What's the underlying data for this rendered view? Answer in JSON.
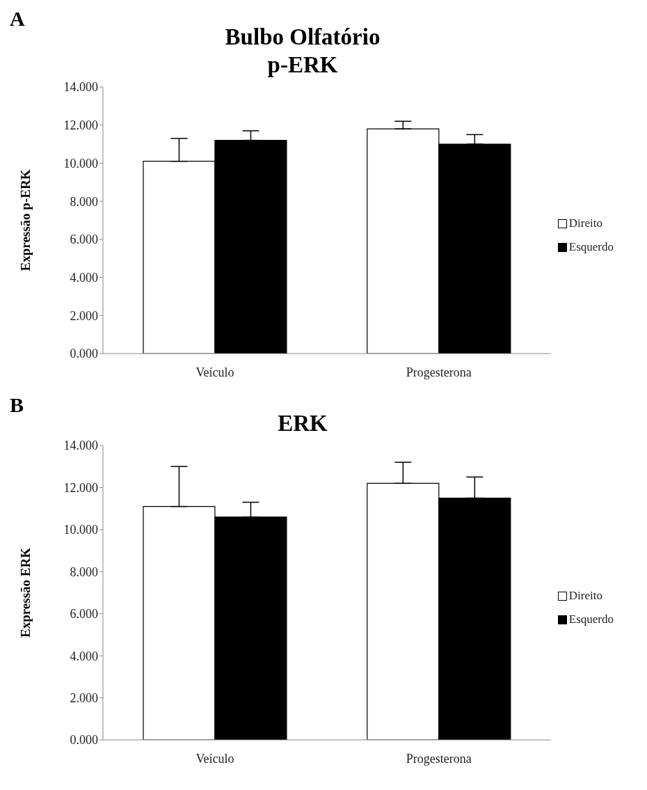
{
  "chart_data": [
    {
      "type": "bar",
      "title": "Bulbo Olfatório",
      "subtitle": "p-ERK",
      "annotations": [
        "A"
      ],
      "ylabel": "Expressão p-ERK",
      "categories": [
        "Veículo",
        "Progesterona"
      ],
      "series": [
        {
          "name": "Direito",
          "color": "#ffffff",
          "values": [
            10.1,
            11.8
          ],
          "errors": [
            [
              10.1,
              11.3
            ],
            [
              11.8,
              12.2
            ]
          ]
        },
        {
          "name": "Esquerdo",
          "color": "#000000",
          "values": [
            11.2,
            11.0
          ],
          "errors": [
            [
              11.2,
              11.7
            ],
            [
              11.0,
              11.5
            ]
          ]
        }
      ],
      "ylim": [
        0,
        14
      ],
      "yticks": [
        {
          "value": 0,
          "label": "0.000"
        },
        {
          "value": 2,
          "label": "2.000"
        },
        {
          "value": 4,
          "label": "4.000"
        },
        {
          "value": 6,
          "label": "6.000"
        },
        {
          "value": 8,
          "label": "8.000"
        },
        {
          "value": 10,
          "label": "10.000"
        },
        {
          "value": 12,
          "label": "12.000"
        },
        {
          "value": 14,
          "label": "14.000"
        }
      ],
      "legend": "right"
    },
    {
      "type": "bar",
      "title": "ERK",
      "annotations": [
        "B"
      ],
      "ylabel": "Expressão ERK",
      "categories": [
        "Veículo",
        "Progesterona"
      ],
      "series": [
        {
          "name": "Direito",
          "color": "#ffffff",
          "values": [
            11.1,
            12.2
          ],
          "errors": [
            [
              11.1,
              13.0
            ],
            [
              12.2,
              13.2
            ]
          ]
        },
        {
          "name": "Esquerdo",
          "color": "#000000",
          "values": [
            10.6,
            11.5
          ],
          "errors": [
            [
              10.6,
              11.3
            ],
            [
              11.5,
              12.5
            ]
          ]
        }
      ],
      "ylim": [
        0,
        14
      ],
      "yticks": [
        {
          "value": 0,
          "label": "0.000"
        },
        {
          "value": 2,
          "label": "2.000"
        },
        {
          "value": 4,
          "label": "4.000"
        },
        {
          "value": 6,
          "label": "6.000"
        },
        {
          "value": 8,
          "label": "8.000"
        },
        {
          "value": 10,
          "label": "10.000"
        },
        {
          "value": 12,
          "label": "12.000"
        },
        {
          "value": 14,
          "label": "14.000"
        }
      ],
      "legend": "right"
    }
  ]
}
